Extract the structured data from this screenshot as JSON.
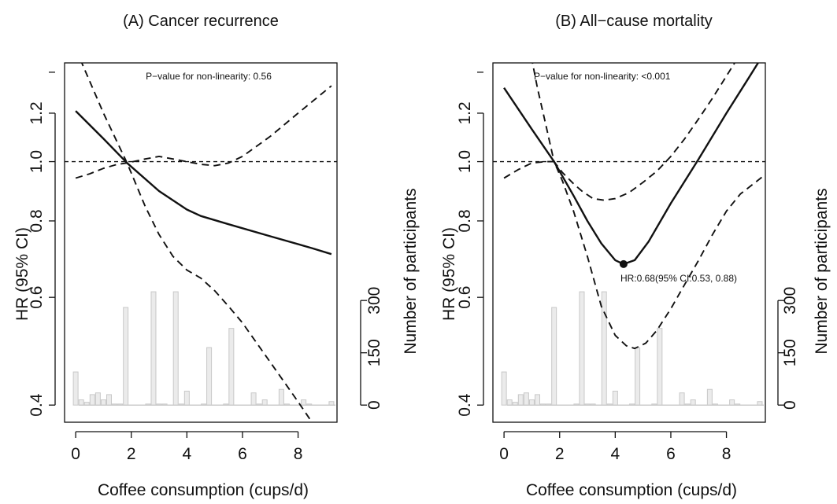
{
  "chart_data": [
    {
      "type": "line",
      "title": "(A) Cancer recurrence",
      "xlabel": "Coffee consumption (cups/d)",
      "ylabel": "HR (95% CI)",
      "y2label": "Number of participants",
      "xlim": [
        -0.4,
        9.4
      ],
      "ylim": [
        0.375,
        1.45
      ],
      "ylog": true,
      "y2lim": [
        0,
        300
      ],
      "x_ticks": [
        "0",
        "2",
        "4",
        "6",
        "8"
      ],
      "y_ticks": [
        "0.4",
        "0.6",
        "0.8",
        "1.0",
        "1.2"
      ],
      "y2_ticks": [
        "0",
        "150",
        "300"
      ],
      "reference_line": 1.0,
      "annotation": "P−value for non-linearity: 0.56",
      "series": [
        {
          "style": "solid",
          "x": [
            0,
            1,
            1.85,
            3,
            4,
            4.5,
            5.5,
            7,
            8.5,
            9.2
          ],
          "y": [
            1.21,
            1.09,
            0.995,
            0.895,
            0.835,
            0.815,
            0.79,
            0.755,
            0.722,
            0.706
          ]
        },
        {
          "style": "dashed",
          "x": [
            0,
            1,
            1.85,
            2.5,
            3,
            3.5,
            4,
            4.5,
            5,
            5.5,
            6,
            7,
            8,
            8.5,
            9.2
          ],
          "y": [
            1.53,
            1.2,
            0.995,
            0.845,
            0.76,
            0.7,
            0.665,
            0.645,
            0.615,
            0.58,
            0.545,
            0.47,
            0.405,
            0.375,
            0.34
          ]
        },
        {
          "style": "dashed",
          "x": [
            0,
            0.5,
            1,
            1.5,
            1.85,
            2.5,
            3,
            3.5,
            4,
            4.5,
            5,
            5.5,
            6,
            7,
            8,
            9.2
          ],
          "y": [
            0.94,
            0.955,
            0.975,
            0.99,
            0.995,
            1.01,
            1.02,
            1.01,
            1.0,
            0.99,
            0.985,
            0.995,
            1.02,
            1.1,
            1.2,
            1.33
          ]
        }
      ],
      "histogram": {
        "x": [
          0,
          0.2,
          0.4,
          0.6,
          0.8,
          1.0,
          1.2,
          1.4,
          1.6,
          1.8,
          2.6,
          2.8,
          3.0,
          3.2,
          3.6,
          3.8,
          4.0,
          4.6,
          4.8,
          5.4,
          5.6,
          6.4,
          6.6,
          6.8,
          7.4,
          7.6,
          8.2,
          8.4,
          9.2
        ],
        "values": [
          95,
          15,
          8,
          30,
          35,
          15,
          30,
          3,
          3,
          280,
          3,
          325,
          3,
          3,
          325,
          3,
          40,
          3,
          165,
          3,
          220,
          35,
          3,
          15,
          45,
          3,
          15,
          3,
          10
        ]
      }
    },
    {
      "type": "line",
      "title": "(B) All−cause mortality",
      "xlabel": "Coffee consumption (cups/d)",
      "ylabel": "HR (95% CI)",
      "y2label": "Number of participants",
      "xlim": [
        -0.4,
        9.4
      ],
      "ylim": [
        0.375,
        1.45
      ],
      "ylog": true,
      "y2lim": [
        0,
        300
      ],
      "x_ticks": [
        "0",
        "2",
        "4",
        "6",
        "8"
      ],
      "y_ticks": [
        "0.4",
        "0.6",
        "0.8",
        "1.0",
        "1.2"
      ],
      "y2_ticks": [
        "0",
        "150",
        "300"
      ],
      "reference_line": 1.0,
      "annotation": "P−value for non-linearity: <0.001",
      "point": {
        "x": 4.3,
        "y": 0.68,
        "label": "HR:0.68(95% CI:0.53, 0.88)"
      },
      "series": [
        {
          "style": "solid",
          "x": [
            0,
            1,
            1.8,
            2.5,
            3,
            3.5,
            4,
            4.3,
            4.7,
            5.2,
            6,
            7,
            8,
            8.8,
            9.3
          ],
          "y": [
            1.32,
            1.13,
            1.0,
            0.88,
            0.8,
            0.735,
            0.69,
            0.68,
            0.69,
            0.74,
            0.855,
            1.01,
            1.2,
            1.37,
            1.49
          ]
        },
        {
          "style": "dashed",
          "x": [
            0.9,
            1.2,
            1.5,
            1.8,
            2.1,
            2.5,
            2.8,
            3.2,
            3.6,
            4.0,
            4.5,
            5.0,
            5.5,
            6.0,
            6.5,
            7.0,
            7.5,
            8.0,
            8.5,
            9.3
          ],
          "y": [
            1.55,
            1.32,
            1.15,
            1.0,
            0.96,
            0.92,
            0.895,
            0.87,
            0.865,
            0.87,
            0.89,
            0.925,
            0.965,
            1.02,
            1.09,
            1.175,
            1.27,
            1.38,
            1.5,
            1.71
          ]
        },
        {
          "style": "dashed",
          "x": [
            0,
            0.5,
            1,
            1.5,
            1.8,
            2.1,
            2.5,
            3,
            3.5,
            4,
            4.4,
            4.7,
            5.1,
            5.5,
            6,
            6.5,
            7,
            7.5,
            8,
            8.5,
            9.3
          ],
          "y": [
            0.94,
            0.97,
            0.995,
            1.0,
            1.0,
            0.93,
            0.83,
            0.7,
            0.58,
            0.52,
            0.5,
            0.495,
            0.505,
            0.53,
            0.575,
            0.63,
            0.69,
            0.76,
            0.83,
            0.885,
            0.945
          ]
        }
      ],
      "histogram": {
        "x": [
          0,
          0.2,
          0.4,
          0.6,
          0.8,
          1.0,
          1.2,
          1.4,
          1.6,
          1.8,
          2.6,
          2.8,
          3.0,
          3.2,
          3.6,
          3.8,
          4.0,
          4.6,
          4.8,
          5.4,
          5.6,
          6.4,
          6.6,
          6.8,
          7.4,
          7.6,
          8.2,
          8.4,
          9.2
        ],
        "values": [
          95,
          15,
          8,
          30,
          35,
          15,
          30,
          3,
          3,
          280,
          3,
          325,
          3,
          3,
          325,
          3,
          40,
          3,
          165,
          3,
          220,
          35,
          3,
          15,
          45,
          3,
          15,
          3,
          10
        ]
      }
    }
  ]
}
